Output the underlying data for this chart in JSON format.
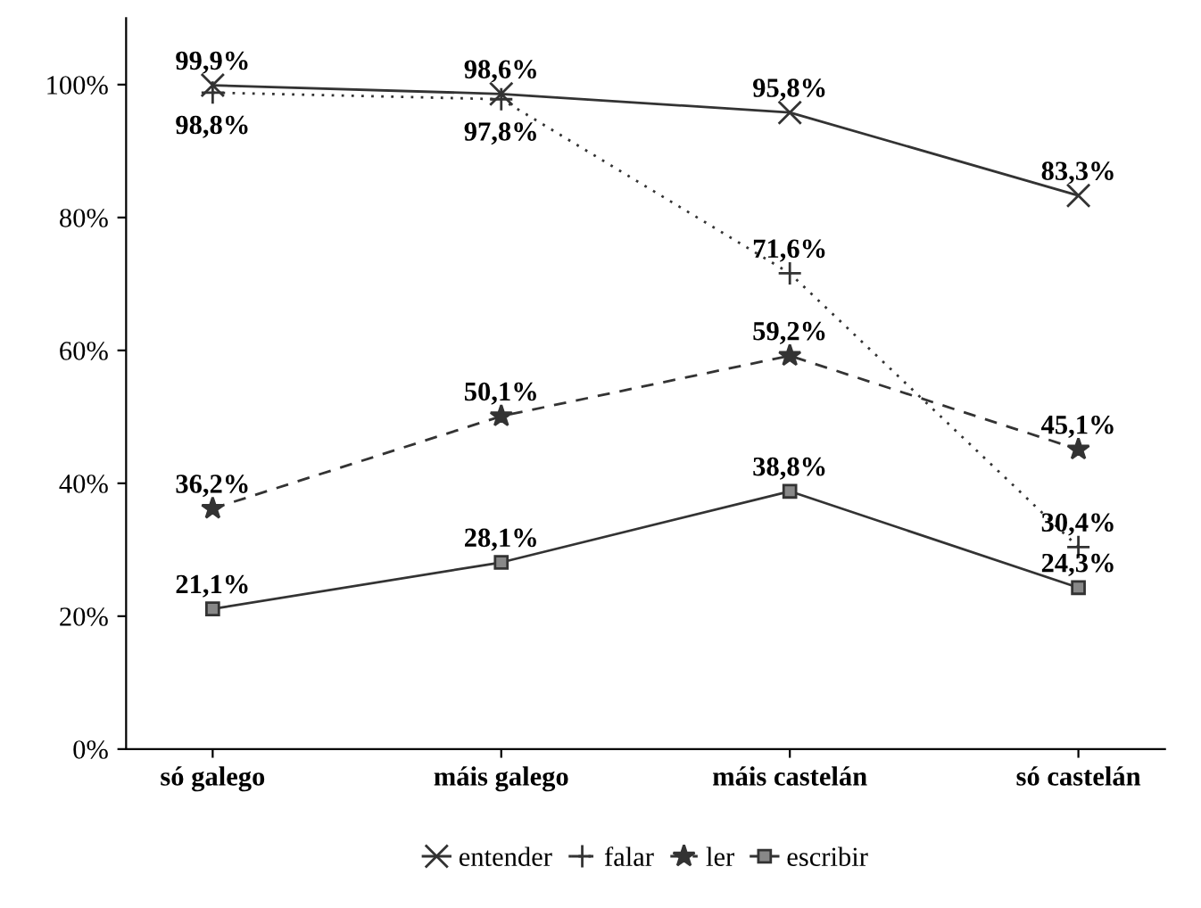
{
  "chart_data": {
    "type": "line",
    "categories": [
      "só galego",
      "máis galego",
      "máis castelán",
      "só castelán"
    ],
    "series": [
      {
        "name": "entender",
        "color": "#333333",
        "values": [
          99.9,
          98.6,
          95.8,
          83.3
        ],
        "marker": "cross",
        "line_style": "solid",
        "value_labels": [
          "99,9%",
          "98,6%",
          "95,8%",
          "83,3%"
        ]
      },
      {
        "name": "falar",
        "color": "#333333",
        "values": [
          98.8,
          97.8,
          71.6,
          30.4
        ],
        "marker": "plus",
        "line_style": "dotted",
        "value_labels": [
          "98,8%",
          "97,8%",
          "71,6%",
          "30,4%"
        ]
      },
      {
        "name": "ler",
        "color": "#333333",
        "values": [
          36.2,
          50.1,
          59.2,
          45.1
        ],
        "marker": "star",
        "line_style": "dashed",
        "value_labels": [
          "36,2%",
          "50,1%",
          "59,2%",
          "45,1%"
        ]
      },
      {
        "name": "escribir",
        "color": "#333333",
        "values": [
          21.1,
          28.1,
          38.8,
          24.3
        ],
        "marker": "square",
        "line_style": "solid",
        "value_labels": [
          "21,1%",
          "28,1%",
          "38,8%",
          "24,3%"
        ]
      }
    ],
    "ylim": [
      0,
      110
    ],
    "yticks": [
      {
        "value": 0,
        "label": "0%"
      },
      {
        "value": 20,
        "label": "20%"
      },
      {
        "value": 40,
        "label": "40%"
      },
      {
        "value": 60,
        "label": "60%"
      },
      {
        "value": 80,
        "label": "80%"
      },
      {
        "value": 100,
        "label": "100%"
      }
    ],
    "grid": false,
    "legend": "bottom"
  }
}
